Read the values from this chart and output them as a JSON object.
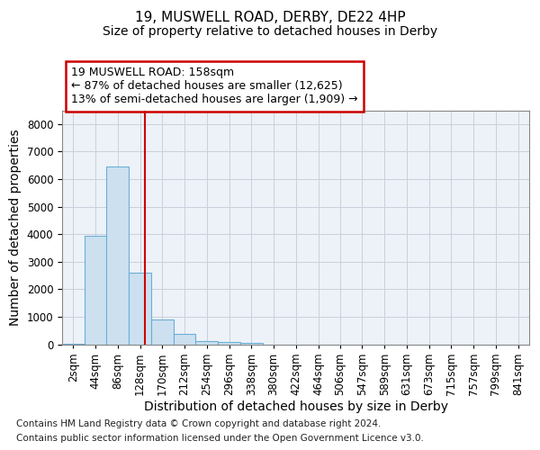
{
  "title_line1": "19, MUSWELL ROAD, DERBY, DE22 4HP",
  "title_line2": "Size of property relative to detached houses in Derby",
  "xlabel": "Distribution of detached houses by size in Derby",
  "ylabel": "Number of detached properties",
  "annotation_line1": "19 MUSWELL ROAD: 158sqm",
  "annotation_line2": "← 87% of detached houses are smaller (12,625)",
  "annotation_line3": "13% of semi-detached houses are larger (1,909) →",
  "property_line_x": 158,
  "bar_labels": [
    "2sqm",
    "44sqm",
    "86sqm",
    "128sqm",
    "170sqm",
    "212sqm",
    "254sqm",
    "296sqm",
    "338sqm",
    "380sqm",
    "422sqm",
    "464sqm",
    "506sqm",
    "547sqm",
    "589sqm",
    "631sqm",
    "673sqm",
    "715sqm",
    "757sqm",
    "799sqm",
    "841sqm"
  ],
  "bin_edges": [
    2,
    44,
    86,
    128,
    170,
    212,
    254,
    296,
    338,
    380,
    422,
    464,
    506,
    547,
    589,
    631,
    673,
    715,
    757,
    799,
    841,
    883
  ],
  "bar_values": [
    30,
    3950,
    6450,
    2600,
    900,
    380,
    130,
    95,
    55,
    0,
    0,
    0,
    0,
    0,
    0,
    0,
    0,
    0,
    0,
    0,
    0
  ],
  "bar_color": "#cce0f0",
  "bar_edgecolor": "#6baed6",
  "vline_color": "#cc0000",
  "ylim": [
    0,
    8500
  ],
  "yticks": [
    0,
    1000,
    2000,
    3000,
    4000,
    5000,
    6000,
    7000,
    8000
  ],
  "grid_color": "#c8d0dc",
  "background_color": "#edf2f8",
  "annotation_box_color": "#cc0000",
  "footer_line1": "Contains HM Land Registry data © Crown copyright and database right 2024.",
  "footer_line2": "Contains public sector information licensed under the Open Government Licence v3.0.",
  "title_fontsize": 11,
  "subtitle_fontsize": 10,
  "axis_label_fontsize": 10,
  "tick_fontsize": 8.5,
  "annotation_fontsize": 9,
  "footer_fontsize": 7.5
}
